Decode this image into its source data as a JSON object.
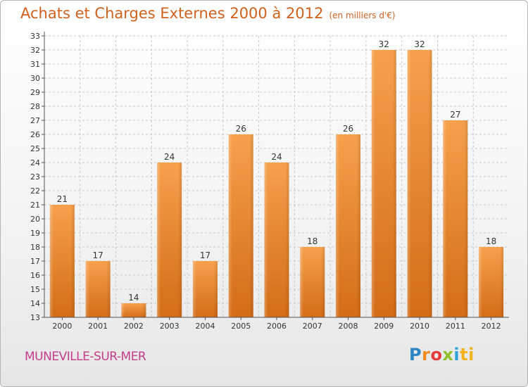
{
  "header": {
    "title": "Achats et Charges Externes 2000 à 2012",
    "unit": "(en milliers d'€)"
  },
  "footer": {
    "town": "MUNEVILLE-SUR-MER",
    "logo_letters": [
      "P",
      "r",
      "o",
      "x",
      "i",
      "ti"
    ]
  },
  "colors": {
    "accent": "#d0611d",
    "bar_light": "#f7a04c",
    "bar_dark": "#d36c17",
    "town": "#c43d8a",
    "axis": "#555555",
    "grid": "#c7c7c7"
  },
  "chart_data": {
    "type": "bar",
    "categories": [
      "2000",
      "2001",
      "2002",
      "2003",
      "2004",
      "2005",
      "2006",
      "2007",
      "2008",
      "2009",
      "2010",
      "2011",
      "2012"
    ],
    "values": [
      21,
      17,
      14,
      24,
      17,
      26,
      24,
      18,
      26,
      32,
      32,
      27,
      18
    ],
    "title": "Achats et Charges Externes 2000 à 2012",
    "subtitle": "(en milliers d'€)",
    "ylim": [
      13,
      33
    ],
    "ytick_step": 1,
    "grid": true,
    "data_labels": true
  }
}
